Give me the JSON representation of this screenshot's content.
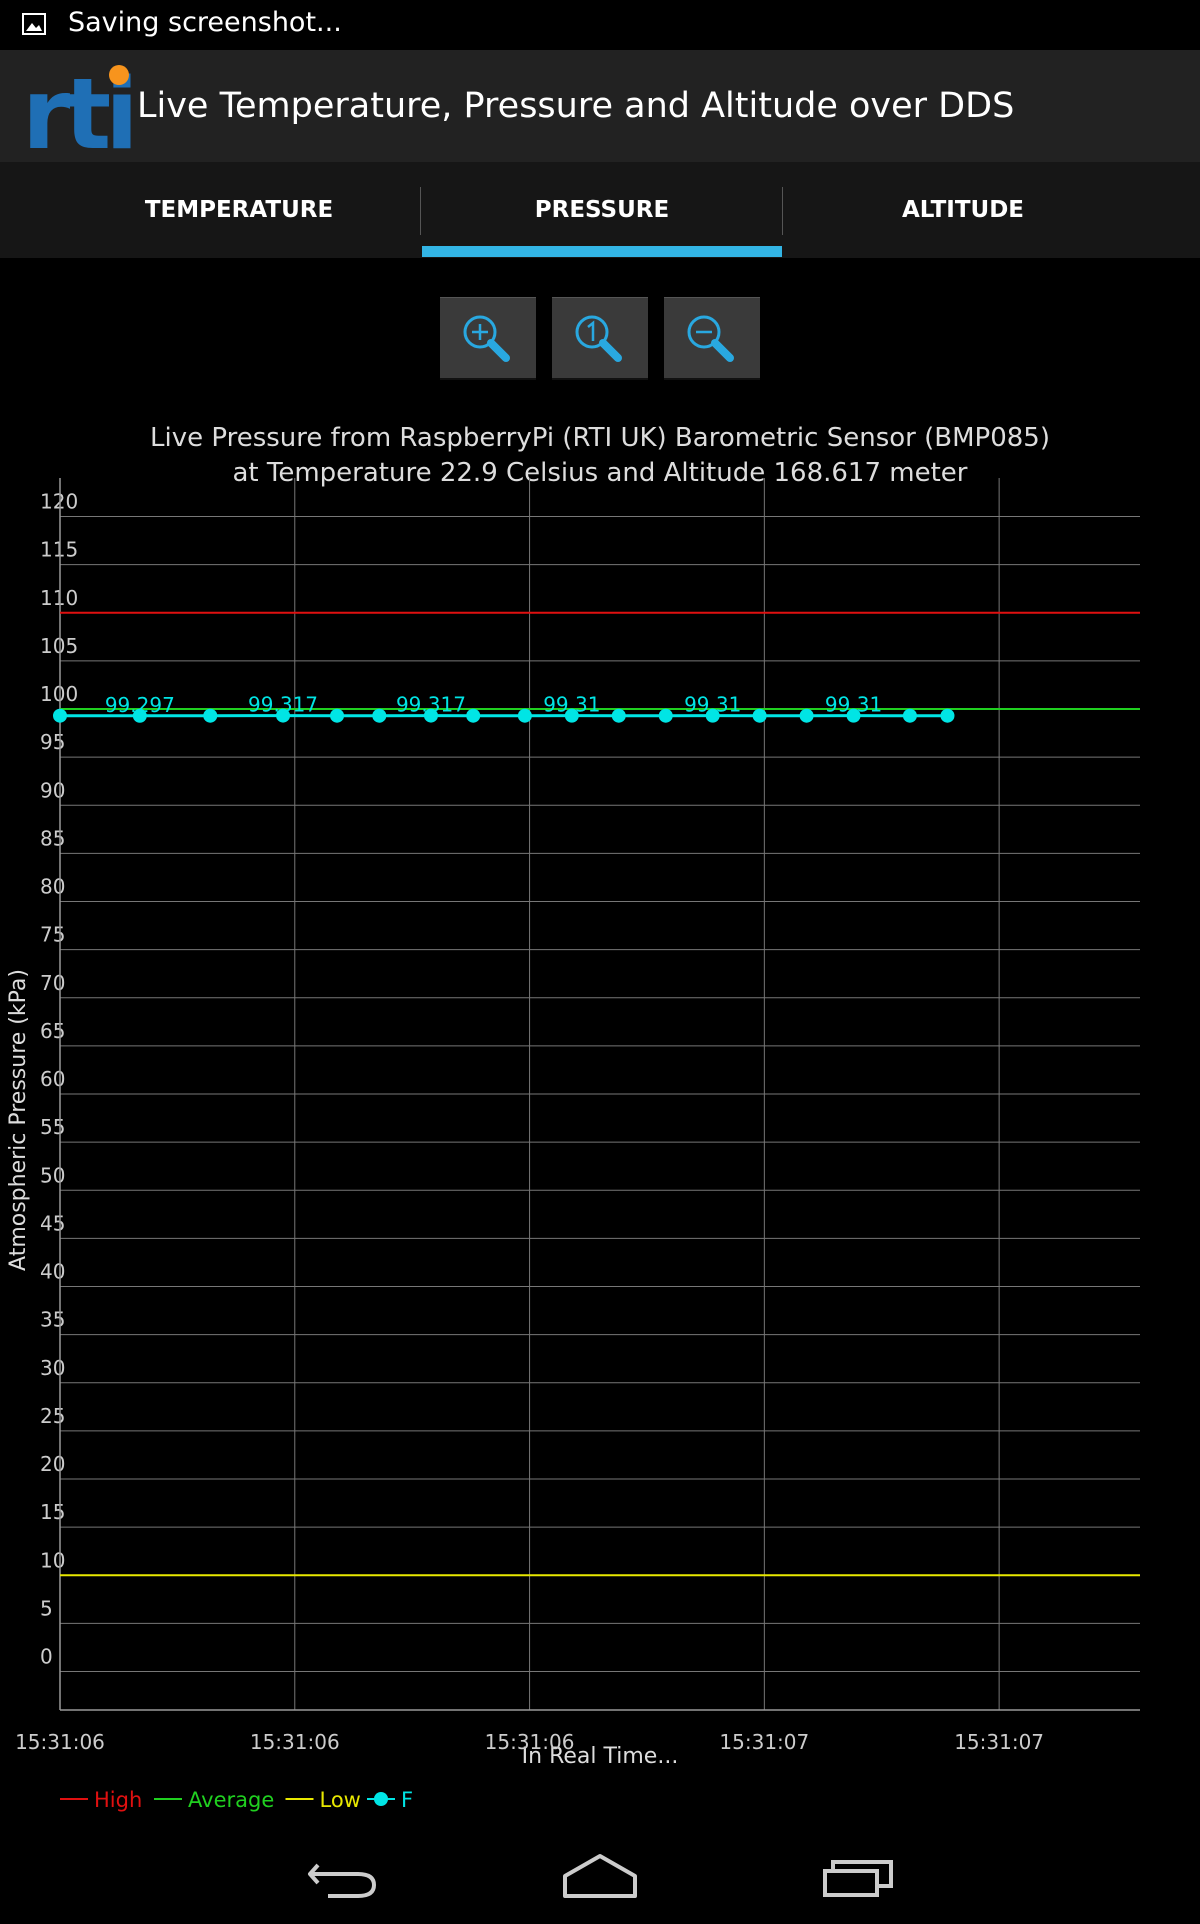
{
  "status_bar": {
    "notification_text": "Saving screenshot..."
  },
  "app": {
    "title": "Live Temperature, Pressure and Altitude over DDS",
    "logo_text": "rti"
  },
  "tabs": [
    {
      "label": "TEMPERATURE",
      "selected": false
    },
    {
      "label": "PRESSURE",
      "selected": true
    },
    {
      "label": "ALTITUDE",
      "selected": false
    }
  ],
  "zoom_controls": {
    "zoom_in": "zoom-in-icon",
    "zoom_reset": "zoom-reset-icon",
    "zoom_out": "zoom-out-icon"
  },
  "colors": {
    "accent": "#33b5e5",
    "high": "#e01010",
    "average": "#20d020",
    "low": "#e8e800",
    "series": "#00e5e5",
    "grid": "#777777"
  },
  "chart_data": {
    "type": "line",
    "title": "Live Pressure from RaspberryPi (RTI UK) Barometric Sensor (BMP085)",
    "subtitle": "at Temperature 22.9 Celsius and Altitude 168.617 meter",
    "ylabel": "Atmospheric Pressure (kPa)",
    "xlabel": "In Real Time...",
    "ylim": [
      -4,
      124
    ],
    "yticks": [
      0,
      5,
      10,
      15,
      20,
      25,
      30,
      35,
      40,
      45,
      50,
      55,
      60,
      65,
      70,
      75,
      80,
      85,
      90,
      95,
      100,
      105,
      110,
      115,
      120
    ],
    "xlim": [
      0,
      23
    ],
    "xtick_positions": [
      0,
      5,
      10,
      15,
      20
    ],
    "xtick_labels": [
      "15:31:06",
      "15:31:06",
      "15:31:06",
      "15:31:07",
      "15:31:07"
    ],
    "grid": true,
    "legend_placement": "bottom-left",
    "reference_lines": [
      {
        "name": "High",
        "value": 110
      },
      {
        "name": "Average",
        "value": 100
      },
      {
        "name": "Low",
        "value": 10
      }
    ],
    "series": [
      {
        "name": "F",
        "x": [
          0,
          1.7,
          3.2,
          4.75,
          5.9,
          6.8,
          7.9,
          8.8,
          9.9,
          10.9,
          11.9,
          12.9,
          13.9,
          14.9,
          15.9,
          16.9,
          18.1,
          18.9
        ],
        "values": [
          99.3,
          99.297,
          99.3,
          99.317,
          99.3,
          99.3,
          99.317,
          99.3,
          99.3,
          99.31,
          99.3,
          99.3,
          99.31,
          99.3,
          99.3,
          99.31,
          99.3,
          99.3
        ],
        "point_labels": [
          {
            "index": 1,
            "text": "99.297"
          },
          {
            "index": 3,
            "text": "99.317"
          },
          {
            "index": 6,
            "text": "99.317"
          },
          {
            "index": 9,
            "text": "99.31"
          },
          {
            "index": 12,
            "text": "99.31"
          },
          {
            "index": 15,
            "text": "99.31"
          }
        ]
      }
    ]
  },
  "navigation": {
    "back": "back-icon",
    "home": "home-icon",
    "recents": "recents-icon"
  }
}
